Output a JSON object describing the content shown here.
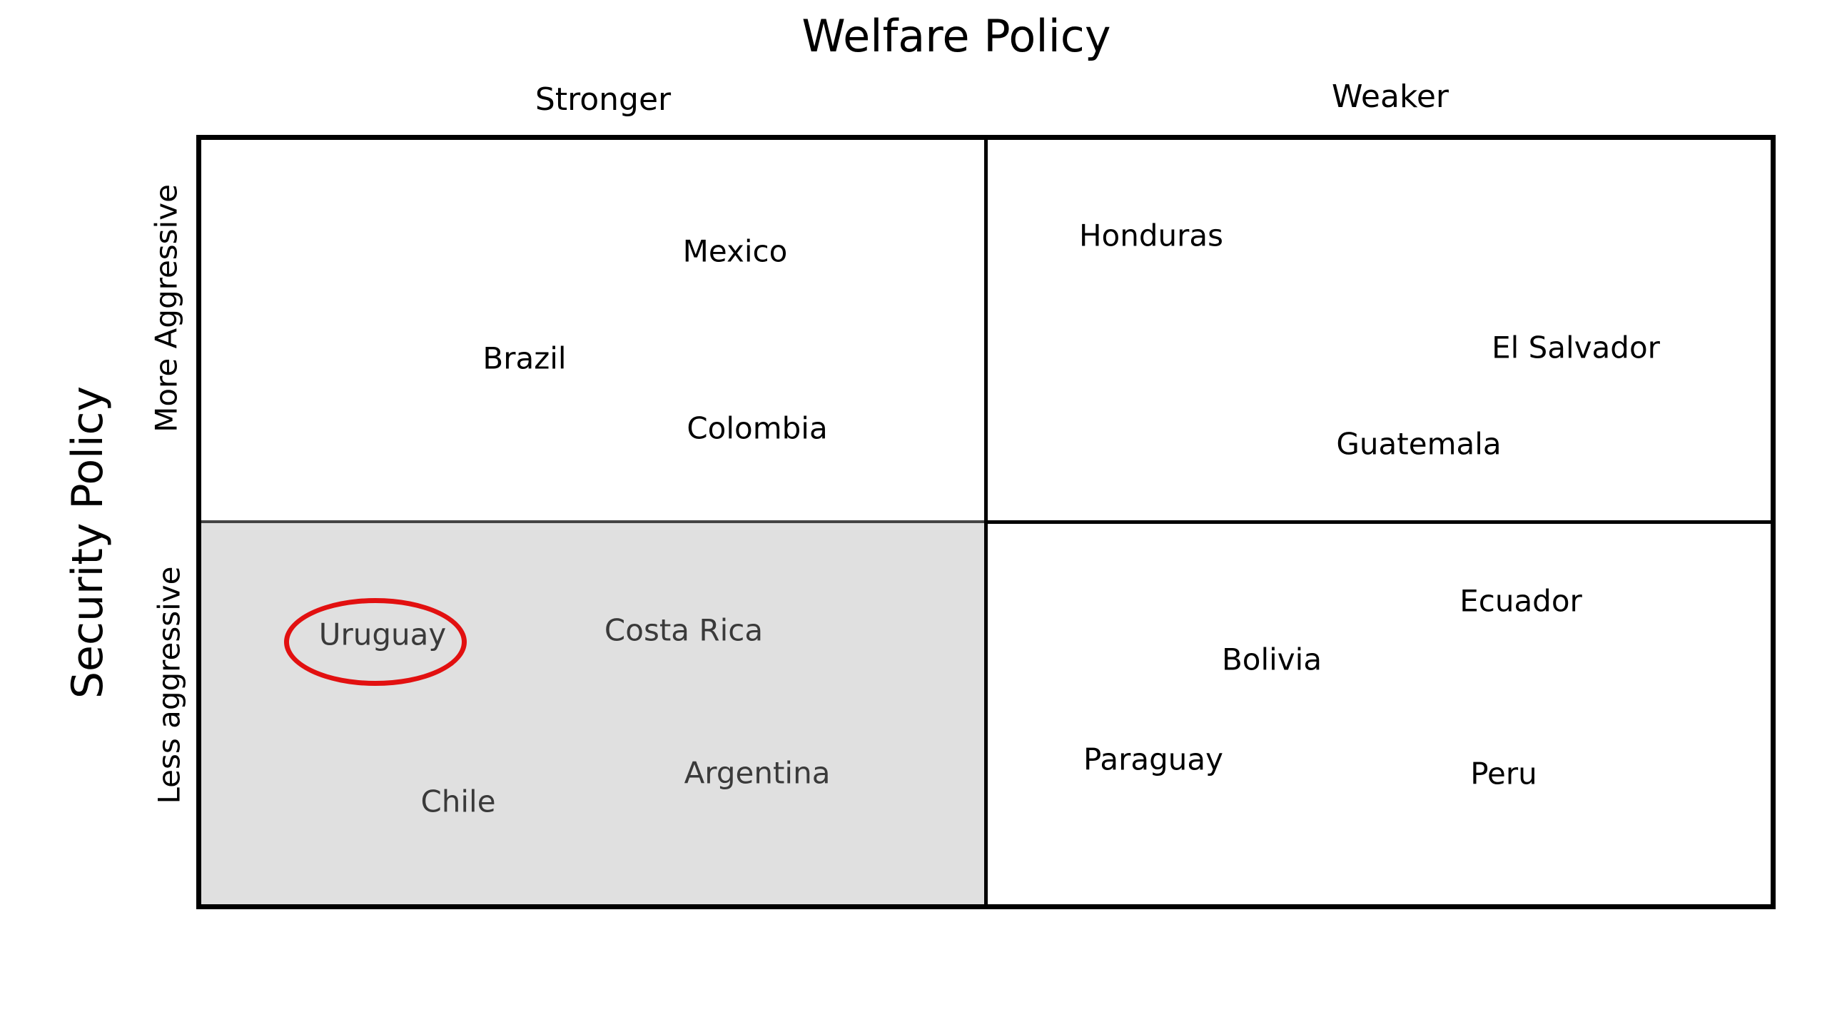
{
  "title": "Welfare Policy",
  "columns": {
    "stronger": "Stronger",
    "weaker": "Weaker"
  },
  "y_axis": "Security Policy",
  "rows": {
    "more": "More Aggressive",
    "less": "Less aggressive"
  },
  "quadrants": {
    "stronger_more": [
      "Mexico",
      "Brazil",
      "Colombia"
    ],
    "weaker_more": [
      "Honduras",
      "El Salvador",
      "Guatemala"
    ],
    "stronger_less": [
      "Uruguay",
      "Costa Rica",
      "Chile",
      "Argentina"
    ],
    "weaker_less": [
      "Ecuador",
      "Bolivia",
      "Paraguay",
      "Peru"
    ]
  },
  "highlighted_country": "Uruguay",
  "colors": {
    "highlight": "#e21010",
    "shaded_quadrant": "#e0e0e0"
  }
}
